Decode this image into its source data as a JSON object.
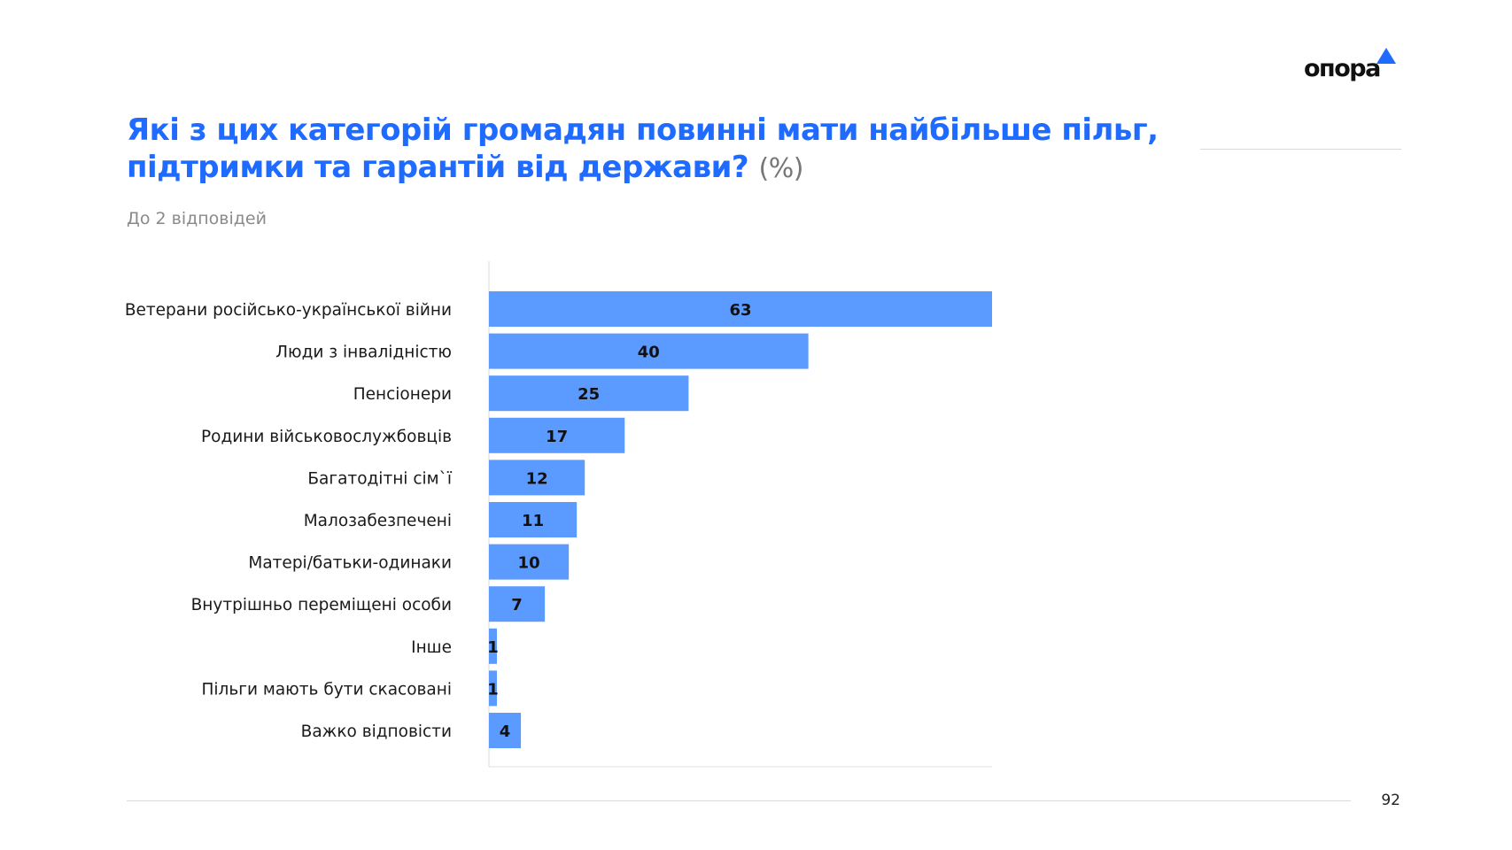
{
  "logo": {
    "text": "опора",
    "accent": "#1f6bff"
  },
  "title": {
    "main": "Які з цих категорій громадян повинні мати найбільше пільг, підтримки та гарантій від держави?",
    "unit": "(%)"
  },
  "subtitle": "До 2 відповідей",
  "page_number": "92",
  "chart_data": {
    "type": "bar",
    "orientation": "horizontal",
    "categories": [
      "Ветерани російсько-української війни",
      "Люди з інвалідністю",
      "Пенсіонери",
      "Родини військовослужбовців",
      "Багатодітні сім`ї",
      "Малозабезпечені",
      "Матері/батьки-одинаки",
      "Внутрішньо переміщені особи",
      "Інше",
      "Пільги мають бути скасовані",
      "Важко відповісти"
    ],
    "values": [
      63,
      40,
      25,
      17,
      12,
      11,
      10,
      7,
      1,
      1,
      4
    ],
    "xlim": [
      0,
      63
    ],
    "bar_color": "#5b9bff",
    "data_labels": true,
    "grid": false
  }
}
